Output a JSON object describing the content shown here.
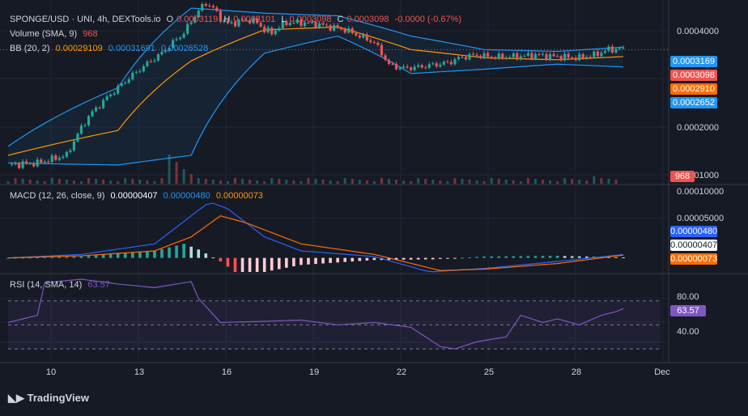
{
  "colors": {
    "background": "#161a25",
    "up": "#26a69a",
    "down": "#ef5350",
    "bb_basis": "#ff9800",
    "bb_band": "#2196f3",
    "macd_line": "#2962ff",
    "signal_line": "#ff6d00",
    "rsi_line": "#7e57c2",
    "hist_pos_strong": "#26a69a",
    "hist_pos_weak": "#b2dfdb",
    "hist_neg_strong": "#ff5252",
    "hist_neg_weak": "#ffcdd2"
  },
  "legend": {
    "symbol": "SPONGE/USD · UNI, 4h, DEXTools.io",
    "open_label": "O",
    "open": "0.0003119",
    "high_label": "H",
    "high": "0.0003101",
    "low_label": "L",
    "low": "0.0003098",
    "close_label": "C",
    "close": "0.0003098",
    "change": "-0.0000 (-0.67%)",
    "volume_label": "Volume (SMA, 9)",
    "volume_value": "968",
    "bb_label": "BB (20, 2)",
    "bb_basis": "0.00029109",
    "bb_upper": "0.00031691",
    "bb_lower": "0.00026528",
    "macd_label": "MACD (12, 26, close, 9)",
    "macd_v1": "0.00000407",
    "macd_v2": "0.00000480",
    "macd_v3": "0.00000073",
    "rsi_label": "RSI (14, SMA, 14)",
    "rsi_value": "63.57"
  },
  "price_axis": [
    "0.0004000",
    "0.0002000",
    "0.0001000"
  ],
  "price_tags": {
    "bb_upper": "0.0003169",
    "last": "0.0003098",
    "bb_basis": "0.0002910",
    "bb_lower": "0.0002652",
    "volume": "968"
  },
  "macd_axis": [
    "0.00010000",
    "0.00005000"
  ],
  "macd_tags": {
    "macd": "0.00000480",
    "signal": "0.00000407",
    "hist": "0.00000073"
  },
  "rsi_axis": [
    "80.00",
    "40.00"
  ],
  "rsi_tag": "63.57",
  "x_axis": [
    "10",
    "13",
    "16",
    "19",
    "22",
    "25",
    "28",
    "Dec"
  ],
  "brand": "TradingView",
  "chart_data": [
    {
      "type": "candlestick",
      "title": "SPONGE/USD · UNI, 4h",
      "x": [
        "10",
        "13",
        "16",
        "19",
        "22",
        "25",
        "28",
        "Dec"
      ],
      "ylim": [
        0.0001,
        0.00045
      ],
      "price_path": [
        [
          0,
          0.00011
        ],
        [
          8,
          0.000112
        ],
        [
          16,
          0.00012
        ],
        [
          22,
          0.00017
        ],
        [
          30,
          0.00022
        ],
        [
          36,
          0.00026
        ],
        [
          42,
          0.0003
        ],
        [
          48,
          0.00036
        ],
        [
          52,
          0.00044
        ],
        [
          54,
          0.00047
        ],
        [
          56,
          0.00045
        ],
        [
          58,
          0.00041
        ],
        [
          60,
          0.00039
        ],
        [
          62,
          0.000395
        ],
        [
          64,
          0.0004
        ],
        [
          66,
          0.000405
        ],
        [
          68,
          0.000395
        ],
        [
          70,
          0.00037
        ],
        [
          72,
          0.00036
        ],
        [
          74,
          0.00038
        ],
        [
          76,
          0.000395
        ],
        [
          80,
          0.000395
        ],
        [
          84,
          0.00039
        ],
        [
          88,
          0.00038
        ],
        [
          92,
          0.00037
        ],
        [
          96,
          0.00035
        ],
        [
          100,
          0.00033
        ],
        [
          104,
          0.00027
        ],
        [
          108,
          0.000262
        ],
        [
          112,
          0.000265
        ],
        [
          116,
          0.00027
        ],
        [
          120,
          0.000275
        ],
        [
          124,
          0.00029
        ],
        [
          128,
          0.000295
        ],
        [
          132,
          0.00029
        ],
        [
          136,
          0.00029
        ],
        [
          140,
          0.000292
        ],
        [
          144,
          0.000295
        ],
        [
          148,
          0.000292
        ],
        [
          152,
          0.00029
        ],
        [
          156,
          0.000288
        ],
        [
          160,
          0.000295
        ],
        [
          164,
          0.00031
        ],
        [
          167,
          0.000312
        ],
        [
          168,
          0.0003098
        ]
      ],
      "bb_basis": [
        [
          0,
          0.00012
        ],
        [
          30,
          0.00015
        ],
        [
          50,
          0.00028
        ],
        [
          70,
          0.00037
        ],
        [
          90,
          0.00038
        ],
        [
          110,
          0.00031
        ],
        [
          130,
          0.000288
        ],
        [
          150,
          0.000283
        ],
        [
          168,
          0.00029109
        ]
      ],
      "bb_upper": [
        [
          0,
          0.00013
        ],
        [
          30,
          0.00022
        ],
        [
          50,
          0.00045
        ],
        [
          70,
          0.00043
        ],
        [
          90,
          0.00042
        ],
        [
          110,
          0.00035
        ],
        [
          130,
          0.00031
        ],
        [
          150,
          0.000305
        ],
        [
          168,
          0.00031691
        ]
      ],
      "bb_lower": [
        [
          0,
          0.000112
        ],
        [
          30,
          0.00011
        ],
        [
          50,
          0.00012
        ],
        [
          70,
          0.0003
        ],
        [
          90,
          0.00035
        ],
        [
          110,
          0.00025
        ],
        [
          130,
          0.00026
        ],
        [
          150,
          0.000272
        ],
        [
          168,
          0.00026528
        ]
      ],
      "volume_spikes": [
        [
          44,
          0.6
        ],
        [
          46,
          0.45
        ],
        [
          48,
          0.3
        ],
        [
          50,
          0.2
        ],
        [
          160,
          0.15
        ]
      ],
      "last_price": "0.0003098"
    },
    {
      "type": "bar",
      "title": "MACD (12, 26, close, 9)",
      "ylim": [
        -2e-05,
        0.0001
      ],
      "macd_line": [
        [
          0,
          0
        ],
        [
          20,
          5e-06
        ],
        [
          40,
          2e-05
        ],
        [
          50,
          6e-05
        ],
        [
          55,
          8e-05
        ],
        [
          60,
          7e-05
        ],
        [
          70,
          3e-05
        ],
        [
          80,
          1e-05
        ],
        [
          100,
          2e-06
        ],
        [
          115,
          -2e-05
        ],
        [
          130,
          -1.5e-05
        ],
        [
          150,
          -5e-06
        ],
        [
          168,
          4.8e-06
        ]
      ],
      "signal_line": [
        [
          0,
          0
        ],
        [
          20,
          3e-06
        ],
        [
          40,
          1e-05
        ],
        [
          50,
          3e-05
        ],
        [
          58,
          6e-05
        ],
        [
          65,
          5e-05
        ],
        [
          80,
          2e-05
        ],
        [
          100,
          5e-06
        ],
        [
          118,
          -1.8e-05
        ],
        [
          130,
          -1.6e-05
        ],
        [
          150,
          -8e-06
        ],
        [
          168,
          4.07e-06
        ]
      ],
      "histogram": [
        [
          0,
          0
        ],
        [
          20,
          2e-06
        ],
        [
          40,
          1e-05
        ],
        [
          48,
          2e-05
        ],
        [
          52,
          1.2e-05
        ],
        [
          58,
          -5e-06
        ],
        [
          62,
          -2e-05
        ],
        [
          70,
          -2e-05
        ],
        [
          80,
          -1e-05
        ],
        [
          100,
          -3e-06
        ],
        [
          116,
          -2e-06
        ],
        [
          130,
          2e-06
        ],
        [
          150,
          3e-06
        ],
        [
          168,
          7.3e-07
        ]
      ]
    },
    {
      "type": "line",
      "title": "RSI (14, SMA, 14)",
      "ylim": [
        20,
        90
      ],
      "values": [
        [
          0,
          52
        ],
        [
          8,
          58
        ],
        [
          10,
          85
        ],
        [
          20,
          88
        ],
        [
          30,
          84
        ],
        [
          40,
          81
        ],
        [
          50,
          86
        ],
        [
          52,
          72
        ],
        [
          58,
          52
        ],
        [
          70,
          53
        ],
        [
          80,
          54
        ],
        [
          90,
          50
        ],
        [
          100,
          52
        ],
        [
          110,
          48
        ],
        [
          118,
          32
        ],
        [
          122,
          30
        ],
        [
          128,
          36
        ],
        [
          136,
          40
        ],
        [
          140,
          58
        ],
        [
          146,
          52
        ],
        [
          150,
          55
        ],
        [
          156,
          50
        ],
        [
          162,
          58
        ],
        [
          166,
          61
        ],
        [
          168,
          63.57
        ]
      ],
      "last_value": "63.57"
    }
  ]
}
